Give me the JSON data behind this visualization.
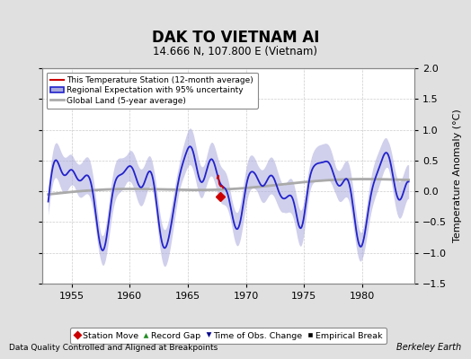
{
  "title": "DAK TO VIETNAM AI",
  "subtitle": "14.666 N, 107.800 E (Vietnam)",
  "ylabel": "Temperature Anomaly (°C)",
  "xlabel_note": "Data Quality Controlled and Aligned at Breakpoints",
  "credit": "Berkeley Earth",
  "ylim": [
    -1.5,
    2.0
  ],
  "xlim": [
    1952.5,
    1984.5
  ],
  "xticks": [
    1955,
    1960,
    1965,
    1970,
    1975,
    1980
  ],
  "yticks": [
    -1.5,
    -1.0,
    -0.5,
    0.0,
    0.5,
    1.0,
    1.5,
    2.0
  ],
  "bg_color": "#e0e0e0",
  "plot_bg_color": "#ffffff",
  "station_color": "#cc0000",
  "regional_color": "#2222cc",
  "regional_band_color": "#aaaadd",
  "global_color": "#aaaaaa",
  "legend_labels": [
    "This Temperature Station (12-month average)",
    "Regional Expectation with 95% uncertainty",
    "Global Land (5-year average)"
  ],
  "marker_legend": [
    {
      "label": "Station Move",
      "color": "#cc0000",
      "marker": "D"
    },
    {
      "label": "Record Gap",
      "color": "#228B22",
      "marker": "^"
    },
    {
      "label": "Time of Obs. Change",
      "color": "#00008B",
      "marker": "v"
    },
    {
      "label": "Empirical Break",
      "color": "#000000",
      "marker": "s"
    }
  ],
  "red_marker_year": 1967.8,
  "red_marker_val": -0.08
}
